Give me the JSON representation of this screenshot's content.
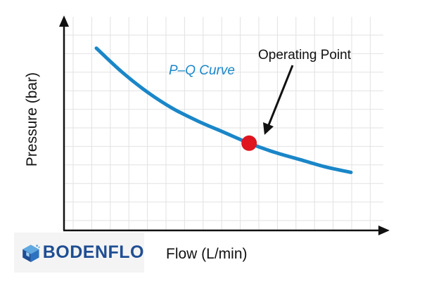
{
  "chart_data": {
    "type": "line",
    "title": "",
    "xlabel": "Flow (L/min)",
    "ylabel": "Pressure (bar)",
    "x_ticks_labeled": false,
    "y_ticks_labeled": false,
    "grid": true,
    "series": [
      {
        "name": "P–Q Curve",
        "color": "#1a86c8",
        "points": [
          [
            0,
            0.84
          ],
          [
            0.1,
            0.71
          ],
          [
            0.2,
            0.6
          ],
          [
            0.3,
            0.51
          ],
          [
            0.4,
            0.44
          ],
          [
            0.5,
            0.38
          ],
          [
            0.6,
            0.32
          ],
          [
            0.7,
            0.27
          ],
          [
            0.8,
            0.23
          ],
          [
            0.9,
            0.19
          ],
          [
            1.0,
            0.16
          ]
        ]
      }
    ],
    "annotations": [
      {
        "text": "Operating Point",
        "x": 0.6,
        "y": 0.32,
        "color": "#e0141e"
      }
    ],
    "series_label": {
      "text": "P–Q Curve",
      "position": "above-curve"
    }
  },
  "logo": {
    "text": "BODENFLO",
    "icon": "cube-logo-icon"
  },
  "colors": {
    "axis": "#111111",
    "grid": "#e2e2e2",
    "curve": "#1a86c8",
    "point": "#e0141e",
    "logo_text": "#1f4e93"
  }
}
